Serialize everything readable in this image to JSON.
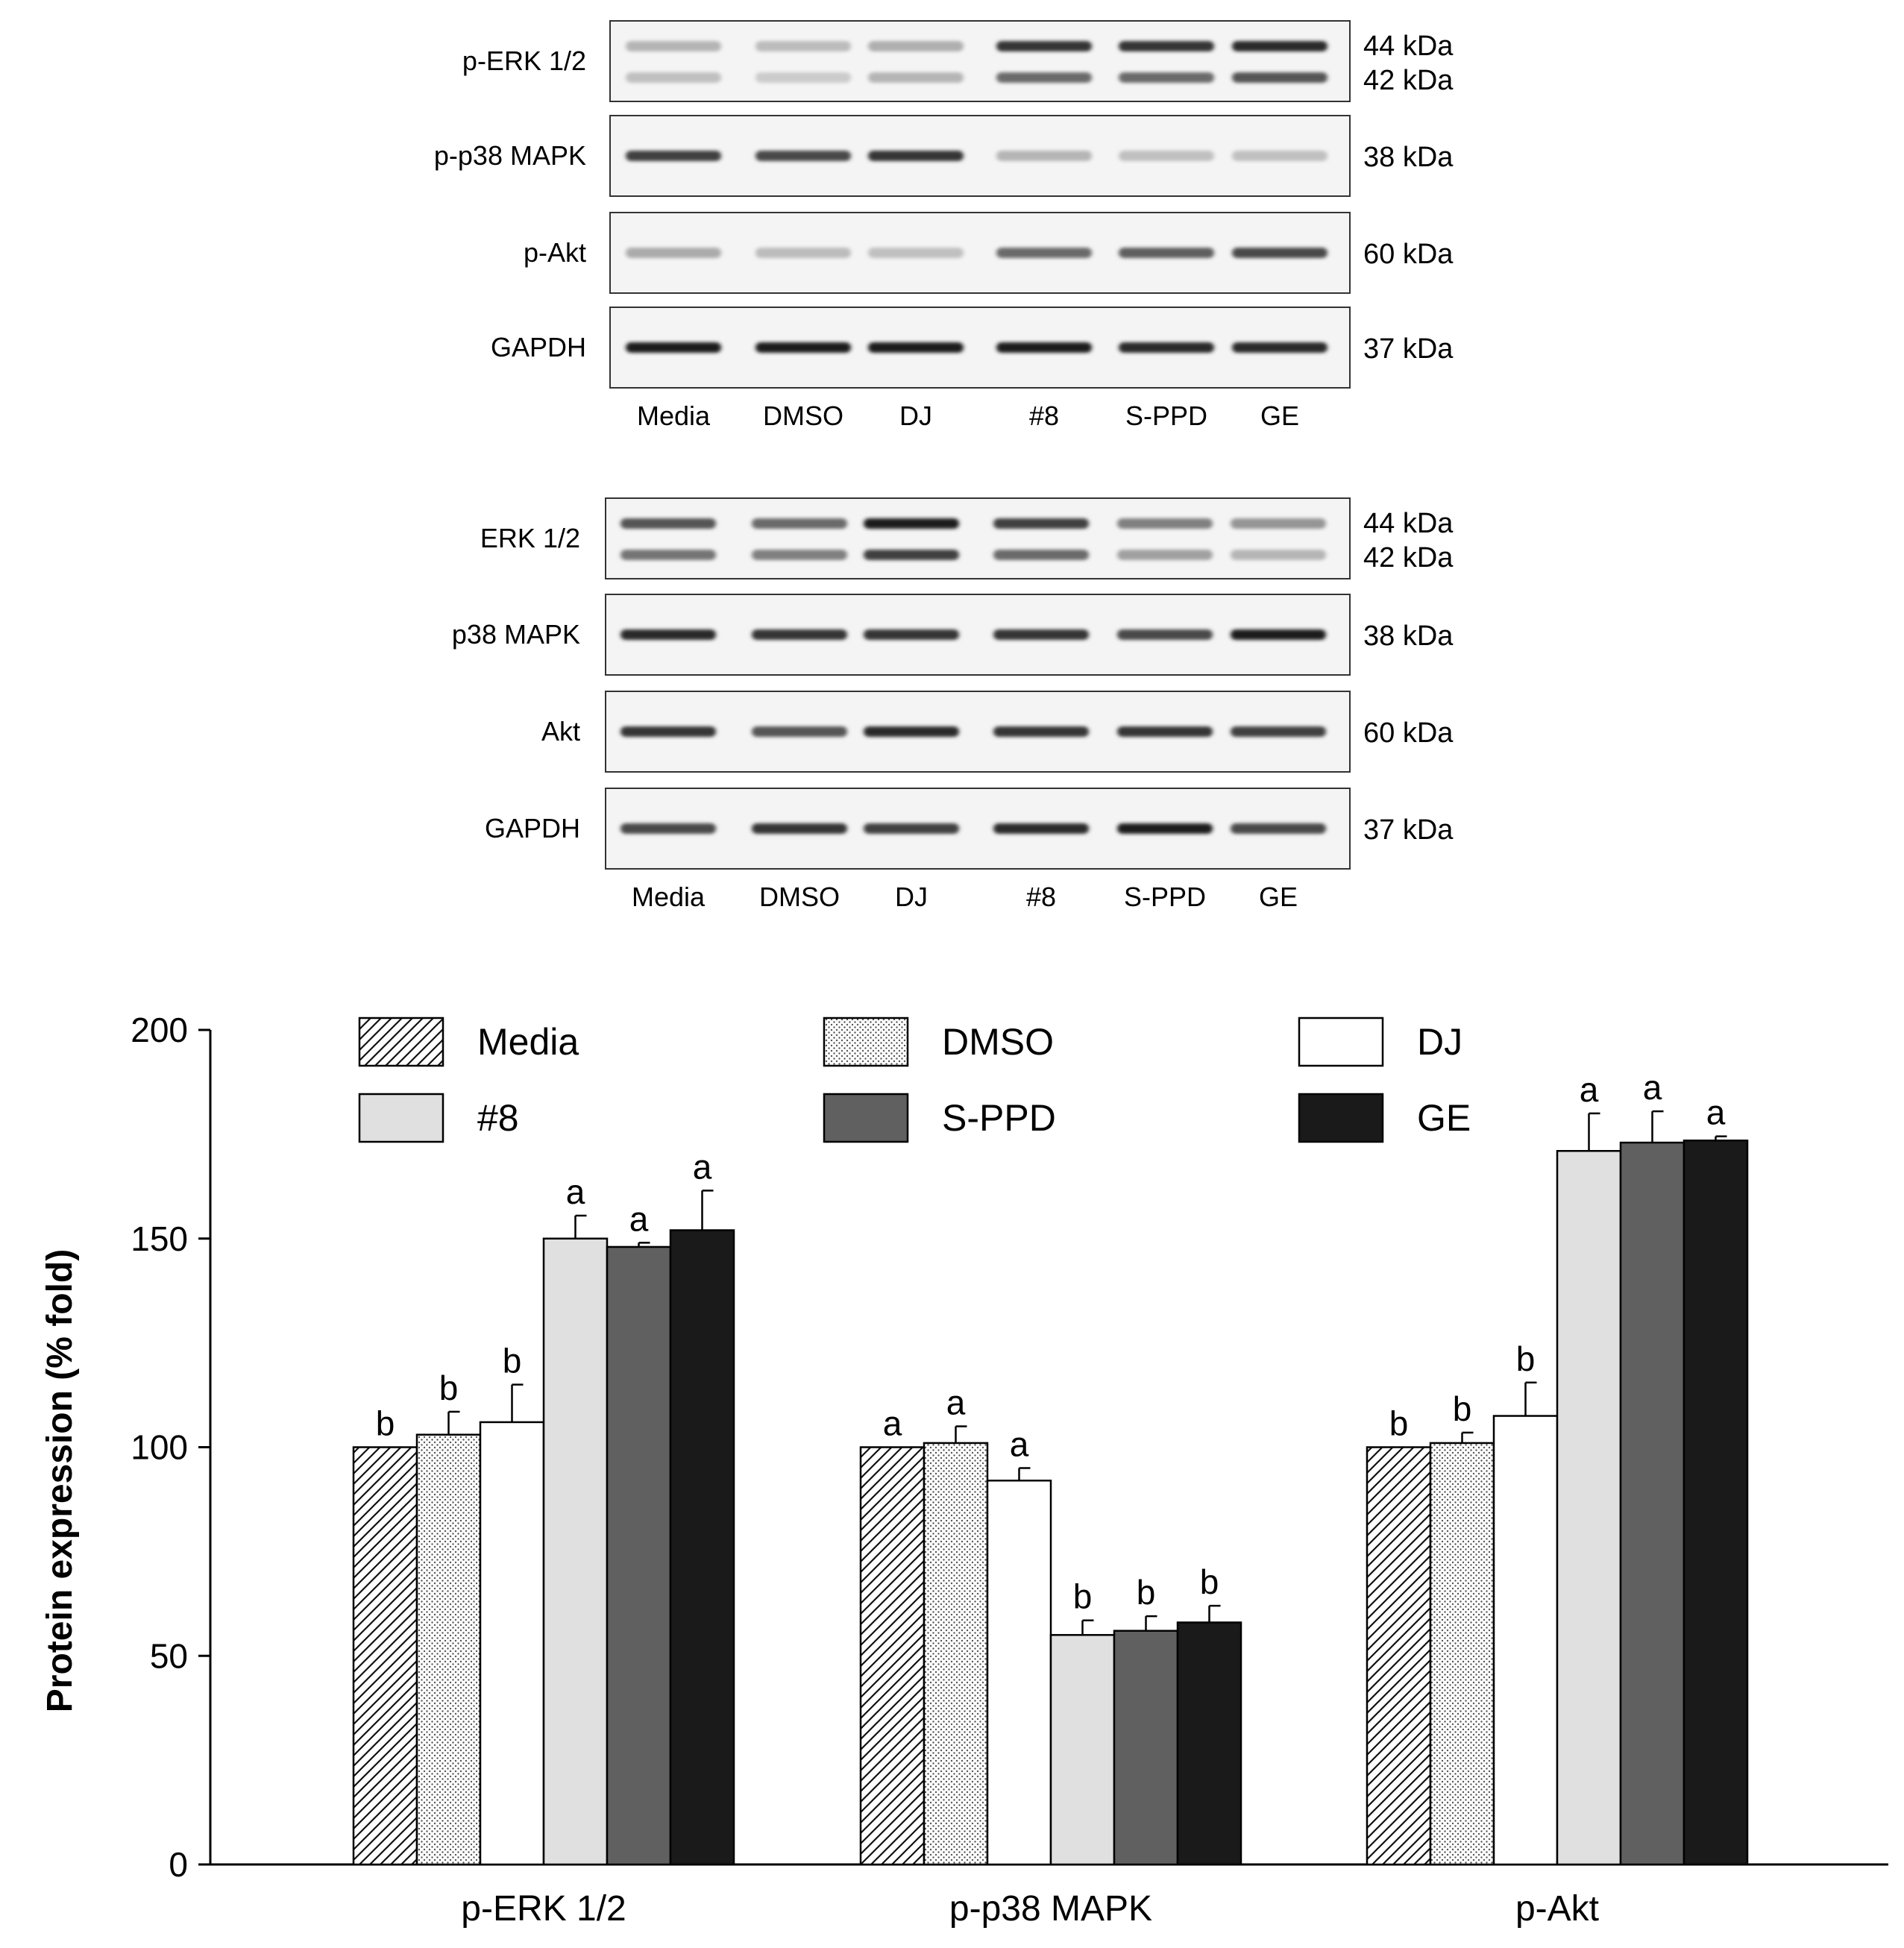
{
  "blots": {
    "phospho": {
      "lanes": [
        "Media",
        "DMSO",
        "DJ",
        "#8",
        "S-PPD",
        "GE"
      ],
      "rows": [
        {
          "label": "p-ERK 1/2",
          "kda": [
            "44 kDa",
            "42 kDa"
          ],
          "doublet": true,
          "intensity": [
            [
              0.25,
              0.22,
              0.28,
              0.85,
              0.85,
              0.9
            ],
            [
              0.2,
              0.15,
              0.25,
              0.6,
              0.6,
              0.7
            ]
          ]
        },
        {
          "label": "p-p38 MAPK",
          "kda": [
            "38 kDa"
          ],
          "doublet": false,
          "intensity": [
            [
              0.8,
              0.75,
              0.85,
              0.25,
              0.2,
              0.2
            ]
          ]
        },
        {
          "label": "p-Akt",
          "kda": [
            "60 kDa"
          ],
          "doublet": false,
          "intensity": [
            [
              0.3,
              0.22,
              0.2,
              0.6,
              0.65,
              0.75
            ]
          ]
        },
        {
          "label": "GAPDH",
          "kda": [
            "37 kDa"
          ],
          "doublet": false,
          "intensity": [
            [
              0.95,
              0.95,
              0.95,
              0.95,
              0.9,
              0.9
            ]
          ]
        }
      ]
    },
    "total": {
      "lanes": [
        "Media",
        "DMSO",
        "DJ",
        "#8",
        "S-PPD",
        "GE"
      ],
      "rows": [
        {
          "label": "ERK 1/2",
          "kda": [
            "44 kDa",
            "42 kDa"
          ],
          "doublet": true,
          "intensity": [
            [
              0.7,
              0.6,
              0.95,
              0.8,
              0.5,
              0.4
            ],
            [
              0.55,
              0.5,
              0.8,
              0.6,
              0.35,
              0.25
            ]
          ]
        },
        {
          "label": "p38 MAPK",
          "kda": [
            "38 kDa"
          ],
          "doublet": false,
          "intensity": [
            [
              0.9,
              0.85,
              0.85,
              0.85,
              0.75,
              0.95
            ]
          ]
        },
        {
          "label": "Akt",
          "kda": [
            "60 kDa"
          ],
          "doublet": false,
          "intensity": [
            [
              0.85,
              0.7,
              0.9,
              0.85,
              0.85,
              0.8
            ]
          ]
        },
        {
          "label": "GAPDH",
          "kda": [
            "37 kDa"
          ],
          "doublet": false,
          "intensity": [
            [
              0.75,
              0.85,
              0.8,
              0.9,
              0.95,
              0.75
            ]
          ]
        }
      ]
    }
  },
  "chart_data": {
    "type": "bar",
    "categories": [
      "p-ERK 1/2",
      "p-p38 MAPK",
      "p-Akt"
    ],
    "ylabel": "Protein expression (% fold)",
    "xlabel": "",
    "ylim": [
      0,
      200
    ],
    "yticks": [
      0,
      50,
      100,
      150,
      200
    ],
    "legend_placement": "top",
    "series": [
      {
        "name": "Media",
        "fill": "hatch",
        "values": [
          100,
          100,
          100
        ],
        "errors": [
          0,
          0,
          0
        ],
        "letters": [
          "b",
          "a",
          "b"
        ]
      },
      {
        "name": "DMSO",
        "fill": "dots",
        "values": [
          103,
          101,
          101
        ],
        "errors": [
          5.5,
          4,
          2.5
        ],
        "letters": [
          "b",
          "a",
          "b"
        ]
      },
      {
        "name": "DJ",
        "fill": "#ffffff",
        "values": [
          106,
          92,
          107.5
        ],
        "errors": [
          9,
          3,
          8
        ],
        "letters": [
          "b",
          "a",
          "b"
        ]
      },
      {
        "name": "#8",
        "fill": "#e0e0e0",
        "values": [
          150,
          55,
          171
        ],
        "errors": [
          5.5,
          3.5,
          9
        ],
        "letters": [
          "a",
          "b",
          "a"
        ]
      },
      {
        "name": "S-PPD",
        "fill": "#606060",
        "values": [
          148,
          56,
          173
        ],
        "errors": [
          1,
          3.5,
          7.5
        ],
        "letters": [
          "a",
          "b",
          "a"
        ]
      },
      {
        "name": "GE",
        "fill": "#1a1a1a",
        "values": [
          152,
          58,
          173.5
        ],
        "errors": [
          9.5,
          4,
          1
        ],
        "letters": [
          "a",
          "b",
          "a"
        ]
      }
    ]
  }
}
